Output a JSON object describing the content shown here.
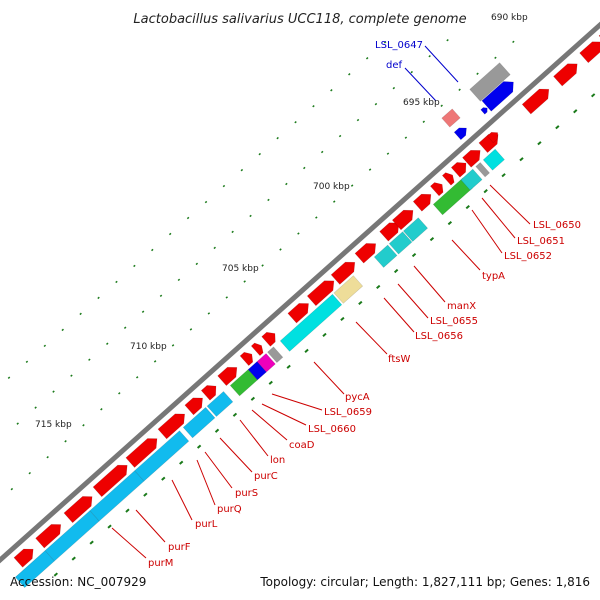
{
  "title": "Lactobacillus salivarius UCC118, complete genome",
  "footer": {
    "accession": "Accession: NC_007929",
    "summary": "Topology: circular; Length: 1,827,111 bp; Genes: 1,816"
  },
  "ruler_labels": [
    "690 kbp",
    "695 kbp",
    "700 kbp",
    "705 kbp",
    "710 kbp",
    "715 kbp"
  ],
  "gene_labels": {
    "LSL_0647": "LSL_0647",
    "def": "def",
    "LSL_0650": "LSL_0650",
    "LSL_0651": "LSL_0651",
    "LSL_0652": "LSL_0652",
    "typA": "typA",
    "manX": "manX",
    "LSL_0655": "LSL_0655",
    "LSL_0656": "LSL_0656",
    "ftsW": "ftsW",
    "pycA": "pycA",
    "LSL_0659": "LSL_0659",
    "LSL_0660": "LSL_0660",
    "coaD": "coaD",
    "lon": "lon",
    "purC": "purC",
    "purS": "purS",
    "purQ": "purQ",
    "purL": "purL",
    "purF": "purF",
    "purM": "purM"
  },
  "colors": {
    "backbone": "#777777",
    "cds_forward": "#ee0000",
    "label_red": "#cc0000",
    "label_blue": "#0000cc",
    "tick_green": "#1a7a1a",
    "cog_cyan": "#00e0e0",
    "cog_teal": "#22cccc",
    "cog_skyblue": "#11bbee",
    "cog_green": "#33bb33",
    "cog_blue": "#0000ee",
    "cog_magenta": "#ee00bb",
    "cog_gray": "#999999",
    "cog_khaki": "#eedd99",
    "cog_olive": "#bbaa66",
    "rna_pink": "#ee7777"
  }
}
